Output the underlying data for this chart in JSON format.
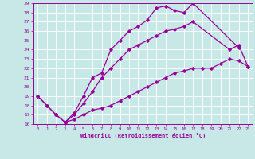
{
  "xlabel": "Windchill (Refroidissement éolien,°C)",
  "xlim": [
    -0.5,
    23.5
  ],
  "ylim": [
    16,
    29
  ],
  "xticks": [
    0,
    1,
    2,
    3,
    4,
    5,
    6,
    7,
    8,
    9,
    10,
    11,
    12,
    13,
    14,
    15,
    16,
    17,
    18,
    19,
    20,
    21,
    22,
    23
  ],
  "yticks": [
    16,
    17,
    18,
    19,
    20,
    21,
    22,
    23,
    24,
    25,
    26,
    27,
    28,
    29
  ],
  "bg_color": "#c8e8e8",
  "line_color": "#990099",
  "grid_color": "#aacece",
  "line1_x": [
    0,
    1,
    2,
    3,
    4,
    5,
    6,
    7,
    8,
    9,
    10,
    11,
    12,
    13,
    14,
    15,
    16,
    17,
    22
  ],
  "line1_y": [
    19.0,
    18.0,
    17.0,
    16.2,
    17.2,
    19.0,
    21.0,
    21.5,
    24.0,
    25.0,
    26.0,
    26.5,
    27.2,
    28.5,
    28.7,
    28.2,
    28.0,
    29.0,
    24.2
  ],
  "line2_x": [
    0,
    1,
    2,
    3,
    4,
    5,
    6,
    7,
    8,
    9,
    10,
    11,
    12,
    13,
    14,
    15,
    16,
    17,
    21,
    22,
    23
  ],
  "line2_y": [
    19.0,
    18.0,
    17.0,
    16.2,
    17.0,
    18.2,
    19.5,
    21.0,
    22.0,
    23.0,
    24.0,
    24.5,
    25.0,
    25.5,
    26.0,
    26.2,
    26.5,
    27.0,
    24.0,
    24.5,
    22.2
  ],
  "line3_x": [
    3,
    4,
    5,
    6,
    7,
    8,
    9,
    10,
    11,
    12,
    13,
    14,
    15,
    16,
    17,
    18,
    19,
    20,
    21,
    22,
    23
  ],
  "line3_y": [
    16.2,
    16.5,
    17.0,
    17.5,
    17.7,
    18.0,
    18.5,
    19.0,
    19.5,
    20.0,
    20.5,
    21.0,
    21.5,
    21.7,
    22.0,
    22.0,
    22.0,
    22.5,
    23.0,
    22.8,
    22.2
  ],
  "marker": "D",
  "markersize": 1.8,
  "linewidth": 0.9
}
